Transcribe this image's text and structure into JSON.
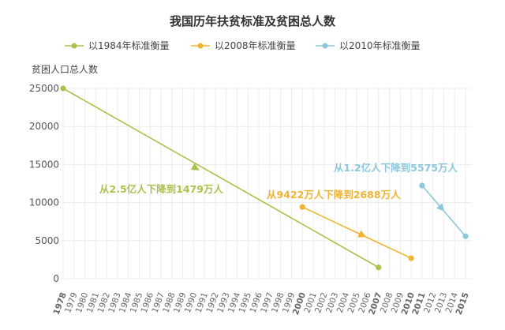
{
  "chart_data": {
    "type": "line",
    "title": "我国历年扶贫标准及贫困总人数",
    "ylabel": "贫困人口总人数",
    "ylim": [
      0,
      25000
    ],
    "yticks": [
      0,
      5000,
      10000,
      15000,
      20000,
      25000
    ],
    "xlim": [
      1978,
      2015
    ],
    "xticks": [
      "1978",
      "1979",
      "1980",
      "1981",
      "1982",
      "1983",
      "1984",
      "1985",
      "1986",
      "1987",
      "1988",
      "1989",
      "1990",
      "1991",
      "1992",
      "1993",
      "1994",
      "1995",
      "1996",
      "1997",
      "1998",
      "1999",
      "2000",
      "2001",
      "2002",
      "2003",
      "2004",
      "2005",
      "2006",
      "2007",
      "2008",
      "2009",
      "2010",
      "2011",
      "2012",
      "2013",
      "2014",
      "2015"
    ],
    "highlighted_xticks": [
      {
        "label": "1978",
        "color": "#a9c24a"
      },
      {
        "label": "2007",
        "color": "#a9c24a"
      },
      {
        "label": "2000",
        "color": "#f0b431"
      },
      {
        "label": "2010",
        "color": "#f0b431"
      },
      {
        "label": "2011",
        "color": "#8cc8dc"
      },
      {
        "label": "2015",
        "color": "#8cc8dc"
      }
    ],
    "grid": true,
    "legend_position": "top",
    "series": [
      {
        "name": "以1984年标准衡量",
        "color": "#a9c24a",
        "x": [
          1978,
          2007
        ],
        "values": [
          25000,
          1479
        ]
      },
      {
        "name": "以2008年标准衡量",
        "color": "#f0b431",
        "x": [
          2000,
          2010
        ],
        "values": [
          9422,
          2688
        ]
      },
      {
        "name": "以2010年标准衡量",
        "color": "#8cc8dc",
        "x": [
          2011,
          2015
        ],
        "values": [
          12238,
          5575
        ]
      }
    ],
    "annotations": [
      {
        "text": "从2.5亿人下降到1479万人",
        "color": "#a9c24a"
      },
      {
        "text": "从9422万人下降到2688万人",
        "color": "#f0b431"
      },
      {
        "text": "从1.2亿人下降到5575万人",
        "color": "#8cc8dc"
      }
    ]
  }
}
